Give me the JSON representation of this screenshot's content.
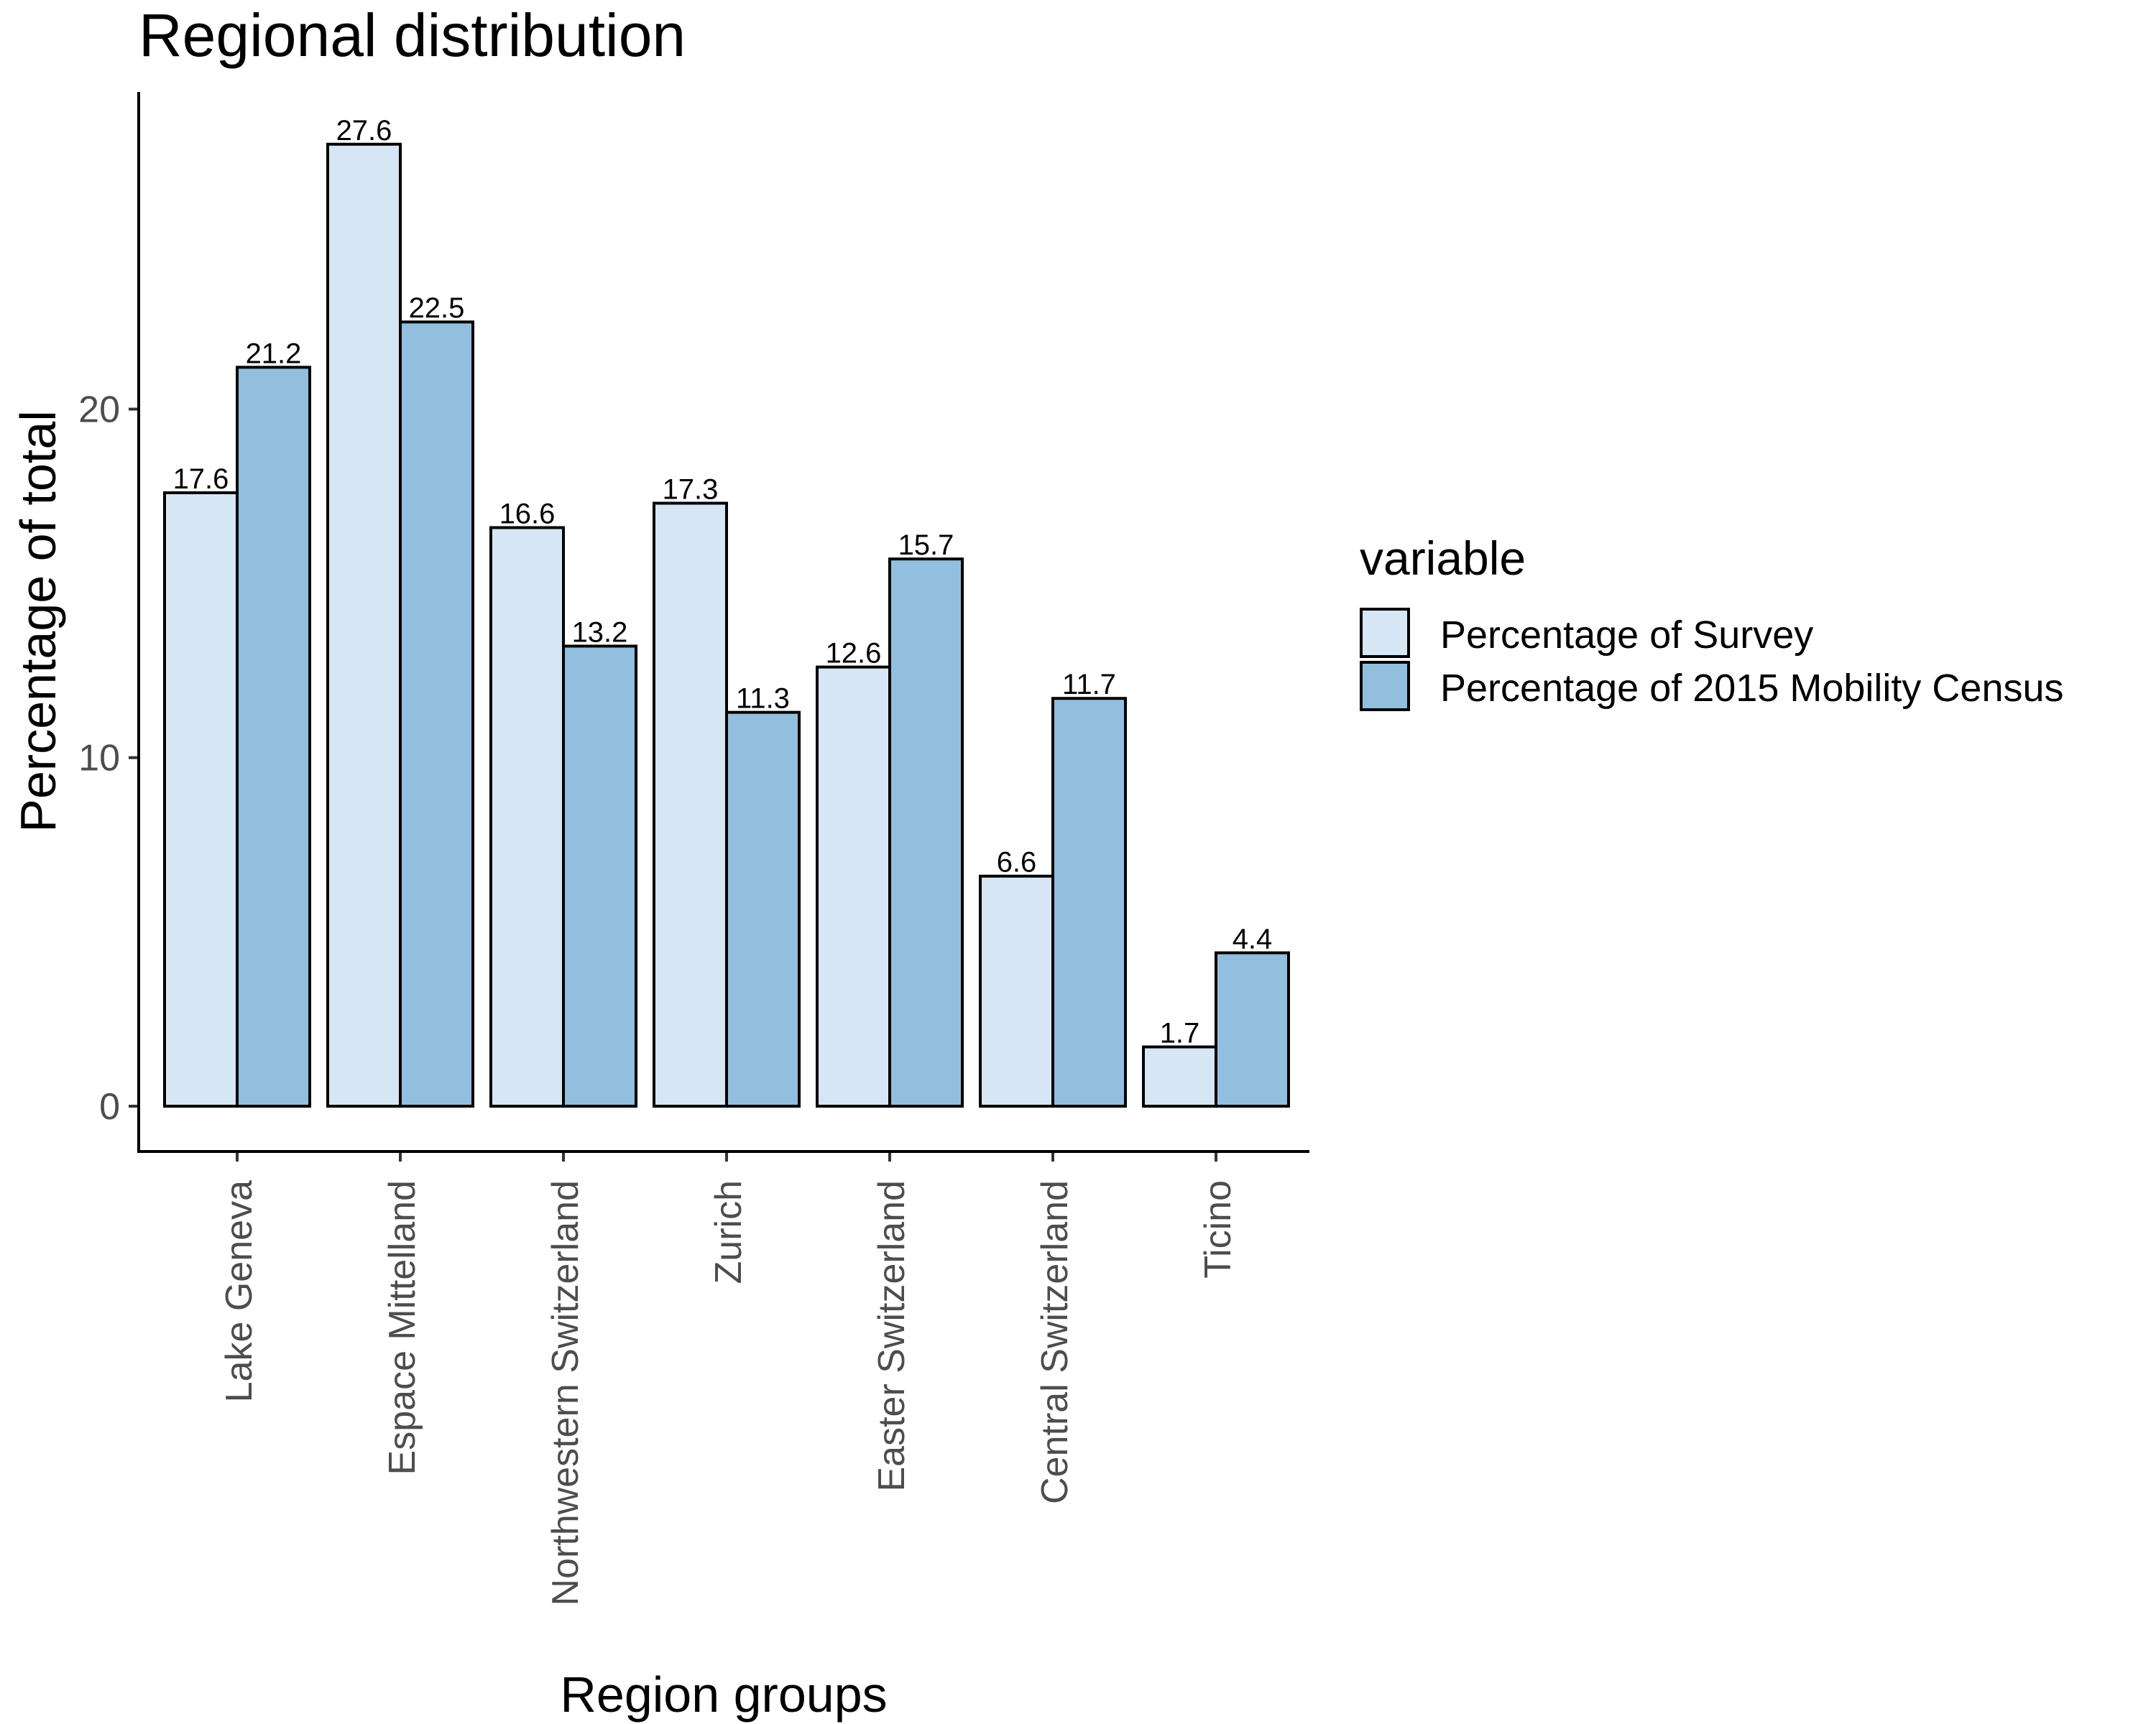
{
  "chart_data": {
    "type": "bar",
    "title": "Regional distribution",
    "xlabel": "Region groups",
    "ylabel": "Percentage of total",
    "ylim": [
      -1.3,
      29.1
    ],
    "yticks": [
      0,
      10,
      20
    ],
    "categories": [
      "Lake Geneva",
      "Espace Mittelland",
      "Northwestern Switzerland",
      "Zurich",
      "Easter Switzerland",
      "Central Switzerland",
      "Ticino"
    ],
    "series": [
      {
        "name": "Percentage of Survey",
        "color": "#d6e6f4",
        "values": [
          17.6,
          27.6,
          16.6,
          17.3,
          12.6,
          6.6,
          1.7
        ]
      },
      {
        "name": "Percentage of 2015 Mobility Census",
        "color": "#92bfdd",
        "values": [
          21.2,
          22.5,
          13.2,
          11.3,
          15.7,
          11.7,
          4.4
        ]
      }
    ],
    "data_labels": [
      [
        "17.6",
        "27.6",
        "16.6",
        "17.3",
        "12.6",
        "6.6",
        "1.7"
      ],
      [
        "21.2",
        "22.5",
        "13.2",
        "11.3",
        "15.7",
        "11.7",
        "4.4"
      ]
    ],
    "legend": {
      "title": "variable",
      "position": "right"
    },
    "grid": false
  }
}
